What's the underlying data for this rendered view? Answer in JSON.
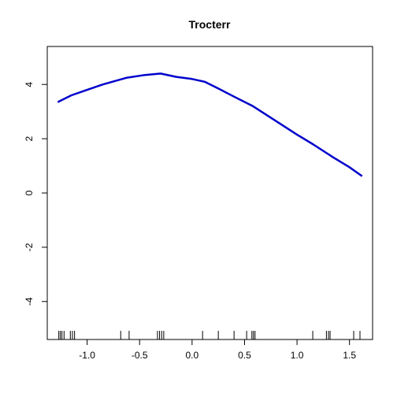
{
  "chart_data": {
    "type": "line",
    "title": "Trocterr",
    "xlabel": "",
    "ylabel": "",
    "xlim": [
      -1.38,
      1.72
    ],
    "ylim": [
      -5.4,
      5.4
    ],
    "x_ticks": [
      -1.0,
      -0.5,
      0.0,
      0.5,
      1.0,
      1.5
    ],
    "x_tick_labels": [
      "-1.0",
      "-0.5",
      "0.0",
      "0.5",
      "1.0",
      "1.5"
    ],
    "y_ticks": [
      -4,
      -2,
      0,
      2,
      4
    ],
    "y_tick_labels": [
      "-4",
      "-2",
      "0",
      "2",
      "4"
    ],
    "grid": false,
    "legend": "none",
    "series": [
      {
        "color": "#0000cc",
        "x": [
          -1.28,
          -1.15,
          -1.0,
          -0.85,
          -0.62,
          -0.45,
          -0.3,
          -0.15,
          0.0,
          0.12,
          0.25,
          0.4,
          0.58,
          0.8,
          1.0,
          1.15,
          1.35,
          1.5,
          1.62
        ],
        "y": [
          3.35,
          3.6,
          3.8,
          4.0,
          4.25,
          4.35,
          4.4,
          4.28,
          4.2,
          4.1,
          3.85,
          3.55,
          3.2,
          2.65,
          2.15,
          1.8,
          1.3,
          0.95,
          0.62
        ]
      }
    ],
    "rug": [
      -1.27,
      -1.255,
      -1.24,
      -1.22,
      -1.16,
      -1.14,
      -1.12,
      -0.68,
      -0.6,
      -0.33,
      -0.31,
      -0.29,
      -0.27,
      0.1,
      0.25,
      0.4,
      0.52,
      0.57,
      0.585,
      0.6,
      1.15,
      1.28,
      1.3,
      1.315,
      1.54,
      1.6
    ]
  }
}
